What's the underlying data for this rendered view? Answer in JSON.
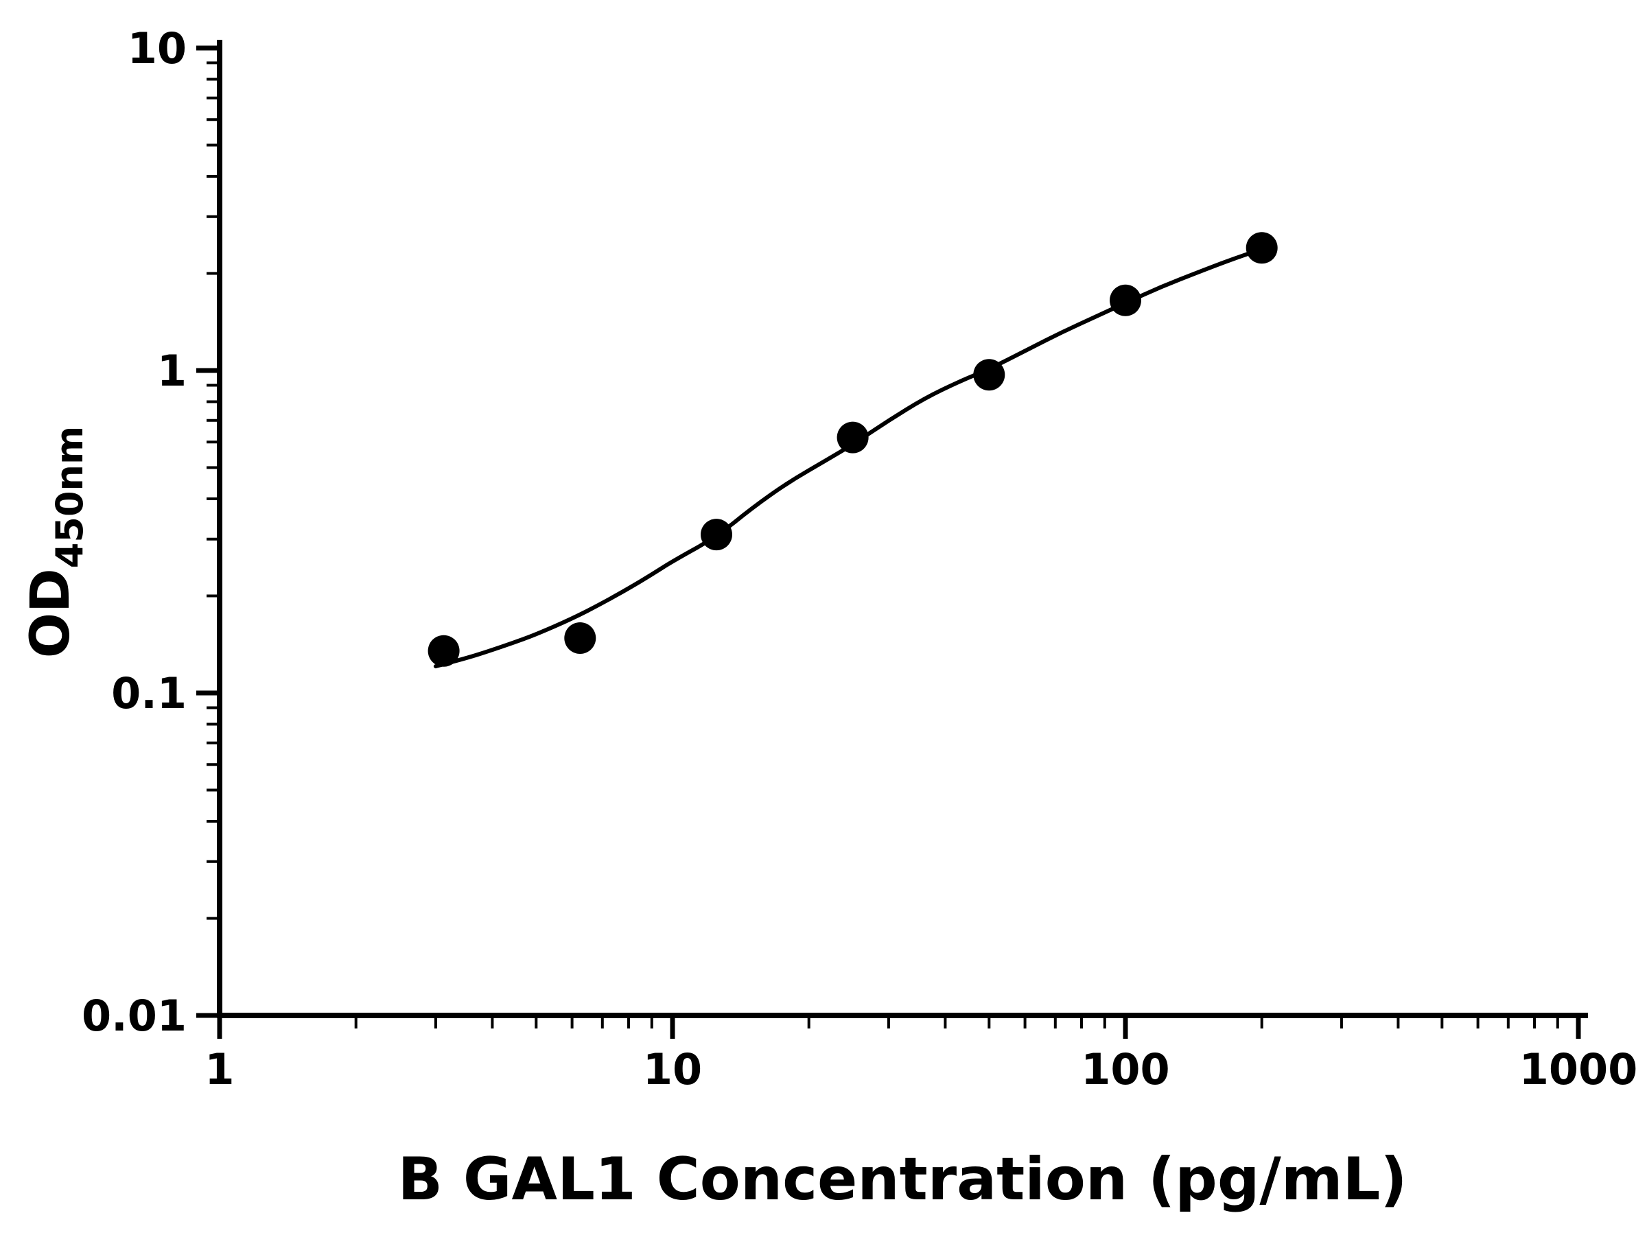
{
  "chart_data": {
    "type": "scatter",
    "title": "",
    "xlabel": "B GAL1 Concentration (pg/mL)",
    "ylabel_main": "OD",
    "ylabel_sub": "450nm",
    "x_scale": "log",
    "y_scale": "log",
    "xlim": [
      1,
      1000
    ],
    "ylim": [
      0.01,
      10
    ],
    "grid": false,
    "legend": "none",
    "x_ticks": [
      {
        "value": 1,
        "label": "1"
      },
      {
        "value": 10,
        "label": "10"
      },
      {
        "value": 100,
        "label": "100"
      },
      {
        "value": 1000,
        "label": "1000"
      }
    ],
    "y_ticks": [
      {
        "value": 0.01,
        "label": "0.01"
      },
      {
        "value": 0.1,
        "label": "0.1"
      },
      {
        "value": 1,
        "label": "1"
      },
      {
        "value": 10,
        "label": "10"
      }
    ],
    "points": [
      {
        "x": 3.125,
        "y": 0.135
      },
      {
        "x": 6.25,
        "y": 0.148
      },
      {
        "x": 12.5,
        "y": 0.31
      },
      {
        "x": 25,
        "y": 0.62
      },
      {
        "x": 50,
        "y": 0.97
      },
      {
        "x": 100,
        "y": 1.65
      },
      {
        "x": 200,
        "y": 2.4
      }
    ],
    "fit_curve": [
      [
        3.0,
        0.121
      ],
      [
        3.5,
        0.128
      ],
      [
        4.0,
        0.136
      ],
      [
        4.5,
        0.144
      ],
      [
        5.0,
        0.152
      ],
      [
        6.0,
        0.17
      ],
      [
        7.0,
        0.19
      ],
      [
        8.0,
        0.211
      ],
      [
        9.0,
        0.233
      ],
      [
        10.0,
        0.256
      ],
      [
        12.5,
        0.305
      ],
      [
        15.0,
        0.375
      ],
      [
        18.0,
        0.45
      ],
      [
        22.0,
        0.53
      ],
      [
        25.0,
        0.59
      ],
      [
        30.0,
        0.7
      ],
      [
        36.0,
        0.82
      ],
      [
        43.0,
        0.925
      ],
      [
        50.0,
        1.01
      ],
      [
        60.0,
        1.15
      ],
      [
        72.0,
        1.31
      ],
      [
        86.0,
        1.47
      ],
      [
        100.0,
        1.62
      ],
      [
        120.0,
        1.82
      ],
      [
        145.0,
        2.02
      ],
      [
        170.0,
        2.2
      ],
      [
        200.0,
        2.38
      ]
    ],
    "marker_color": "#000000",
    "line_color": "#000000",
    "axis_color": "#000000",
    "background_color": "#ffffff"
  }
}
